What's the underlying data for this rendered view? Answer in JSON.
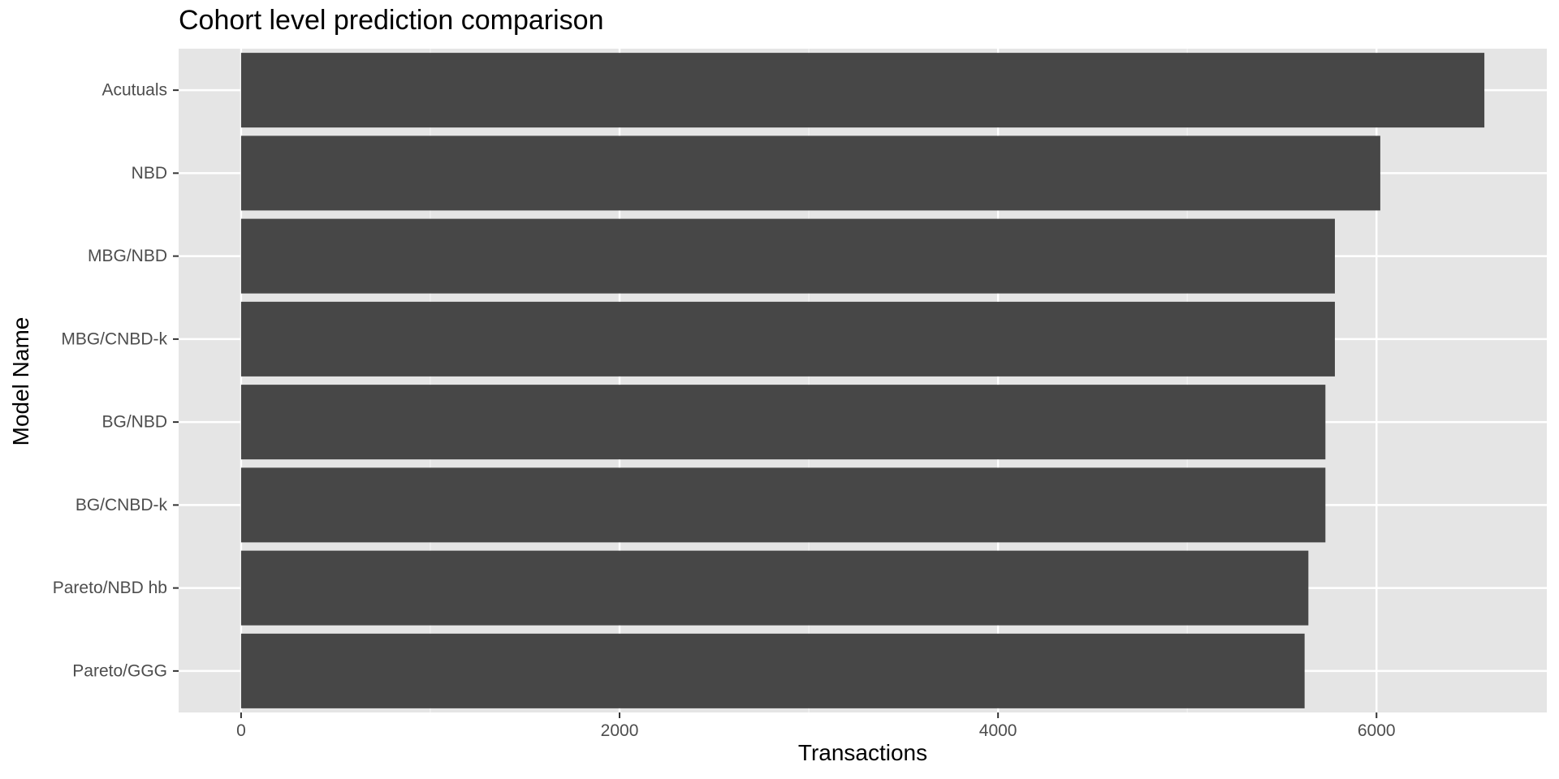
{
  "chart_data": {
    "type": "bar",
    "orientation": "horizontal",
    "title": "Cohort level prediction comparison",
    "xlabel": "Transactions",
    "ylabel": "Model Name",
    "categories": [
      "Acutuals",
      "NBD",
      "MBG/NBD",
      "MBG/CNBD-k",
      "BG/NBD",
      "BG/CNBD-k",
      "Pareto/NBD hb",
      "Pareto/GGG"
    ],
    "values": [
      6570,
      6020,
      5780,
      5780,
      5730,
      5730,
      5640,
      5620
    ],
    "xlim": [
      -330,
      6900
    ],
    "xticks": [
      0,
      2000,
      4000,
      6000
    ],
    "xtick_labels": [
      "0",
      "2000",
      "4000",
      "6000"
    ],
    "grid": true,
    "legend": "none",
    "colors": {
      "bar": "#474747",
      "panel_background": "#E5E5E5",
      "grid_major": "#FFFFFF",
      "grid_minor": "#F2F2F2",
      "tick_text": "#4D4D4D",
      "tick_mark": "#333333"
    }
  }
}
